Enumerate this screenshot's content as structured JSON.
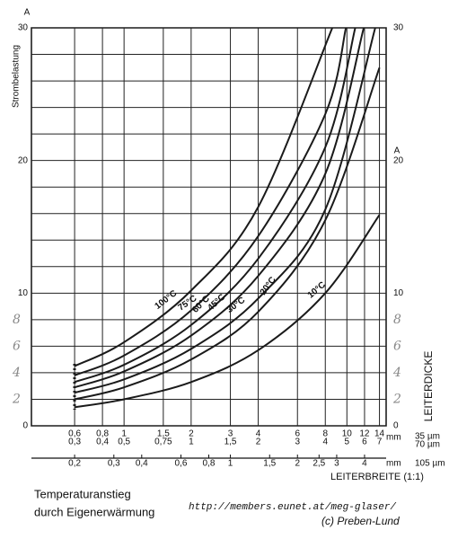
{
  "chart_data": {
    "type": "line",
    "y_unit": "A",
    "y_label": "Strombelastung",
    "right_label": "LEITERDICKE",
    "x_label": "LEITERBREITE (1:1)",
    "x_unit": "mm",
    "x_axis_name": "35 µm",
    "x2_axis_name": "70 µm",
    "x3_axis_name": "105 µm",
    "caption": [
      "Temperaturanstieg",
      "durch Eigenerwärmung"
    ],
    "url": "http://members.eunet.at/meg-glaser/",
    "credit": "(c) Preben-Lund",
    "xscale": "log",
    "xlim": [
      0.384,
      15
    ],
    "xticks": [
      {
        "value": 0.6,
        "label": "0,6"
      },
      {
        "value": 0.8,
        "label": "0,8"
      },
      1,
      {
        "value": 1.5,
        "label": "1,5"
      },
      2,
      3,
      4,
      6,
      8,
      10,
      12,
      14
    ],
    "x2lim": [
      0.192,
      7.5
    ],
    "x2ticks": [
      {
        "value": 0.3,
        "label": "0,3"
      },
      {
        "value": 0.4,
        "label": "0,4"
      },
      {
        "value": 0.5,
        "label": "0,5"
      },
      {
        "value": 0.75,
        "label": "0,75"
      },
      1,
      {
        "value": 1.5,
        "label": "1,5"
      },
      2,
      3,
      4,
      5,
      6,
      7
    ],
    "x3lim": [
      0.128,
      5
    ],
    "x3ticks": [
      {
        "value": 0.2,
        "label": "0,2"
      },
      {
        "value": 0.3,
        "label": "0,3"
      },
      {
        "value": 0.4,
        "label": "0,4"
      },
      {
        "value": 0.6,
        "label": "0,6"
      },
      {
        "value": 0.8,
        "label": "0,8"
      },
      1,
      {
        "value": 1.5,
        "label": "1,5"
      },
      2,
      {
        "value": 2.5,
        "label": "2,5"
      },
      3,
      4
    ],
    "ylim": [
      0,
      30
    ],
    "yticks": [
      0,
      10,
      20,
      30
    ],
    "yticks_handwritten": [
      2,
      4,
      6,
      8
    ],
    "ygrid": [
      2,
      4,
      6,
      8,
      12,
      14,
      16,
      18,
      22,
      24,
      26,
      28
    ],
    "grid": true,
    "color": "#1a1a1a",
    "series": [
      {
        "name": "100°C",
        "x": [
          0.6,
          1,
          2,
          4,
          8.6
        ],
        "values": [
          4.5,
          6.3,
          10.2,
          16.5,
          30
        ]
      },
      {
        "name": "75°C",
        "x": [
          0.6,
          1,
          2,
          4,
          8,
          9.9
        ],
        "values": [
          3.8,
          5.3,
          8.7,
          14.3,
          23.5,
          30
        ]
      },
      {
        "name": "60°C",
        "x": [
          0.6,
          1,
          2,
          4,
          8,
          10.9
        ],
        "values": [
          3.3,
          4.6,
          7.6,
          12.6,
          21,
          30
        ]
      },
      {
        "name": "45°C",
        "x": [
          0.6,
          1,
          2,
          4,
          8,
          11.9
        ],
        "values": [
          2.9,
          4.1,
          6.8,
          11.3,
          19,
          30
        ]
      },
      {
        "name": "30°C",
        "x": [
          0.6,
          1,
          2,
          4,
          8,
          13.4
        ],
        "values": [
          2.5,
          3.5,
          5.8,
          9.6,
          16.3,
          30
        ]
      },
      {
        "name": "20°C",
        "x": [
          0.6,
          1,
          2,
          4,
          8,
          14
        ],
        "values": [
          2.0,
          2.9,
          5.0,
          8.6,
          15.5,
          27
        ]
      },
      {
        "name": "10°C",
        "x": [
          0.6,
          1,
          2,
          4,
          8,
          14
        ],
        "values": [
          1.4,
          2.0,
          3.3,
          5.7,
          10,
          15.9
        ]
      }
    ]
  }
}
